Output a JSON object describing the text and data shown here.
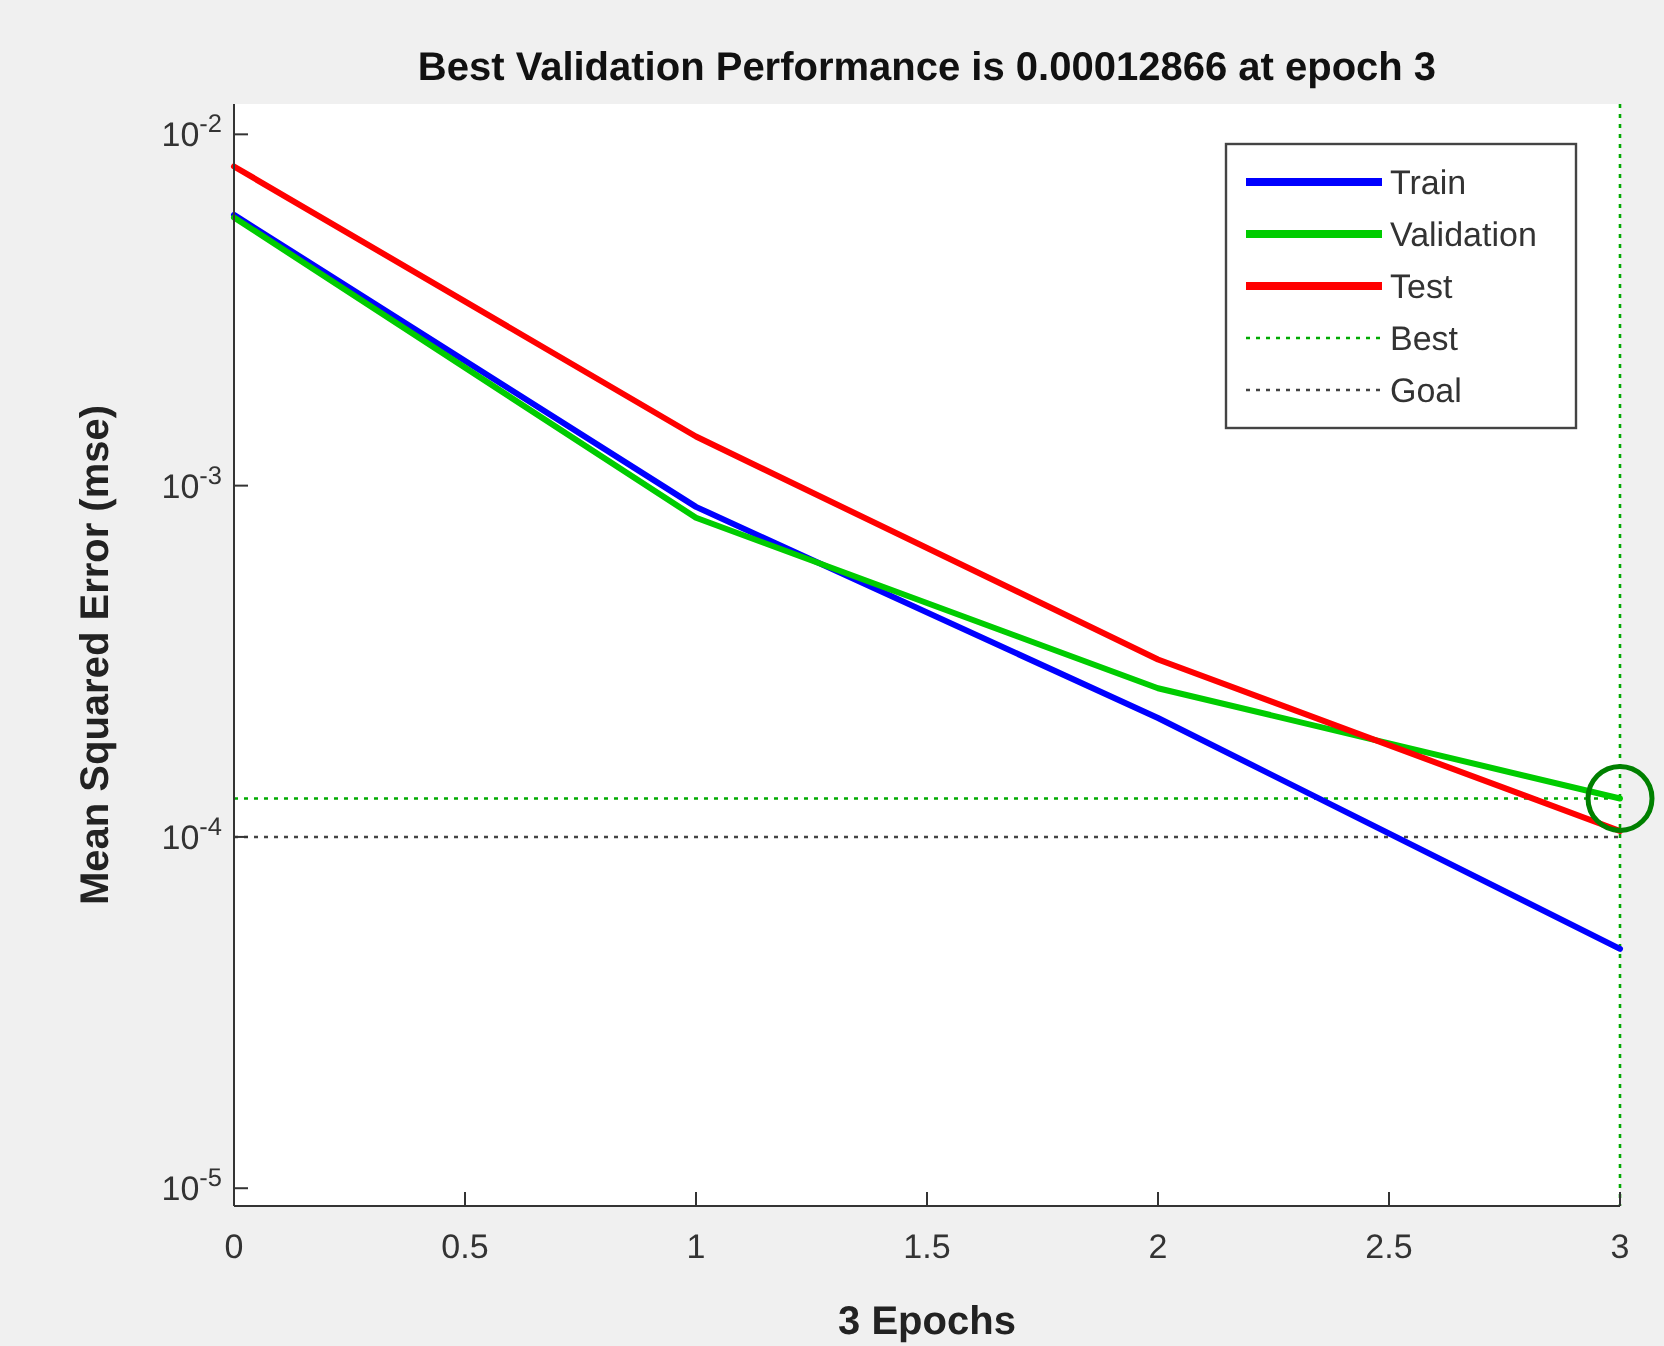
{
  "chart_data": {
    "type": "line",
    "title": "Best Validation Performance is 0.00012866 at epoch 3",
    "xlabel": "3 Epochs",
    "ylabel": "Mean Squared Error  (mse)",
    "x": [
      0,
      1,
      2,
      3
    ],
    "series": [
      {
        "name": "Train",
        "color": "#0000ff",
        "values": [
          0.0059,
          0.00087,
          0.000218,
          4.8e-05
        ]
      },
      {
        "name": "Validation",
        "color": "#00cc00",
        "values": [
          0.0058,
          0.00081,
          0.000265,
          0.00012866
        ]
      },
      {
        "name": "Test",
        "color": "#ff0000",
        "values": [
          0.0081,
          0.00138,
          0.00032,
          0.000104
        ]
      },
      {
        "type": "scatter",
        "color": "#008000",
        "marker": "circle",
        "x": [
          3
        ],
        "values": [
          0.00012866
        ]
      }
    ],
    "ref_lines": [
      {
        "axis": "y",
        "value": 0.00012866,
        "label": "Best",
        "color": "#00aa00",
        "line_style": "dotted"
      },
      {
        "axis": "x",
        "value": 3,
        "color": "#00aa00",
        "line_style": "dotted"
      },
      {
        "axis": "y",
        "value": 0.0001,
        "label": "Goal",
        "color": "#444444",
        "line_style": "dotted"
      }
    ],
    "log": "y",
    "xlim": [
      0,
      3
    ],
    "ylim": [
      8.9e-06,
      0.0122
    ],
    "xticks": [
      0,
      0.5,
      1,
      1.5,
      2,
      2.5,
      3
    ],
    "yticks": [
      {
        "value": 1e-05,
        "label": "10$^{-5}$"
      },
      {
        "value": 0.0001,
        "label": "10$^{-4}$"
      },
      {
        "value": 0.001,
        "label": "10$^{-3}$"
      },
      {
        "value": 0.01,
        "label": "10$^{-2}$"
      }
    ],
    "legend": "top right",
    "grid": false,
    "line_style": "solid"
  }
}
